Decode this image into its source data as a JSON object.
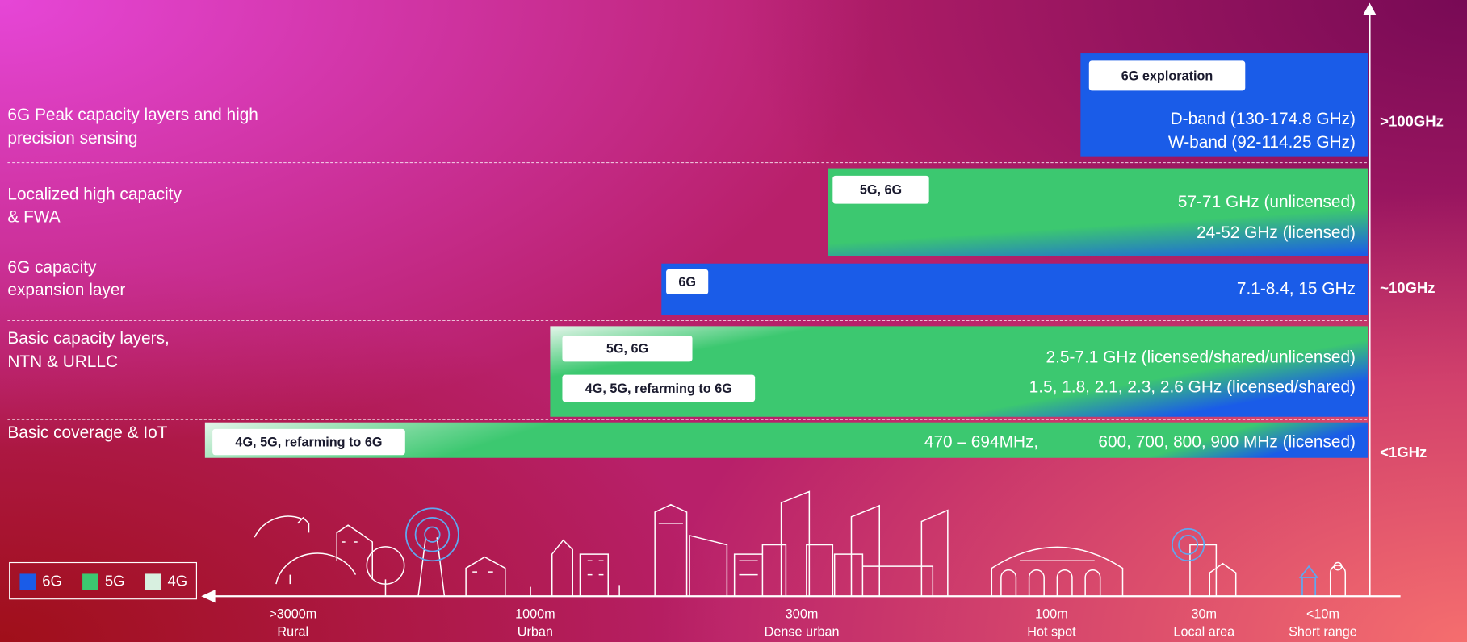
{
  "layers": [
    {
      "lines": [
        "6G Peak capacity layers and high",
        "precision sensing"
      ]
    },
    {
      "lines": [
        "Localized high capacity",
        "& FWA"
      ]
    },
    {
      "lines": [
        "6G capacity",
        "expansion layer"
      ]
    },
    {
      "lines": [
        "Basic capacity layers,",
        "NTN & URLLC"
      ]
    },
    {
      "lines": [
        "Basic coverage & IoT"
      ]
    }
  ],
  "bands": [
    {
      "tags": [
        "6G exploration"
      ],
      "ranges": [
        "D-band (130-174.8 GHz)",
        "W-band (92-114.25 GHz)"
      ]
    },
    {
      "tags": [
        "5G, 6G"
      ],
      "ranges": [
        "57-71 GHz (unlicensed)",
        "24-52 GHz (licensed)"
      ]
    },
    {
      "tags": [
        "6G"
      ],
      "ranges": [
        "7.1-8.4, 15 GHz"
      ]
    },
    {
      "tags": [
        "5G, 6G",
        "4G, 5G, refarming to 6G"
      ],
      "ranges": [
        "2.5-7.1 GHz (licensed/shared/unlicensed)",
        "1.5, 1.8, 2.1, 2.3, 2.6 GHz (licensed/shared)"
      ]
    },
    {
      "tags": [
        "4G, 5G, refarming to 6G"
      ],
      "ranges": [
        "470 – 694MHz,",
        "600, 700, 800, 900 MHz (licensed)"
      ]
    }
  ],
  "frequency_axis": [
    ">100GHz",
    "~10GHz",
    "<1GHz"
  ],
  "distance_axis": [
    {
      "distance": ">3000m",
      "area": "Rural"
    },
    {
      "distance": "1000m",
      "area": "Urban"
    },
    {
      "distance": "300m",
      "area": "Dense urban"
    },
    {
      "distance": "100m",
      "area": "Hot spot"
    },
    {
      "distance": "30m",
      "area": "Local area"
    },
    {
      "distance": "<10m",
      "area": "Short range"
    }
  ],
  "legend": [
    {
      "label": "6G",
      "color": "#1a5ce8"
    },
    {
      "label": "5G",
      "color": "#3cc870"
    },
    {
      "label": "4G",
      "color": "#d8f0e0"
    }
  ]
}
